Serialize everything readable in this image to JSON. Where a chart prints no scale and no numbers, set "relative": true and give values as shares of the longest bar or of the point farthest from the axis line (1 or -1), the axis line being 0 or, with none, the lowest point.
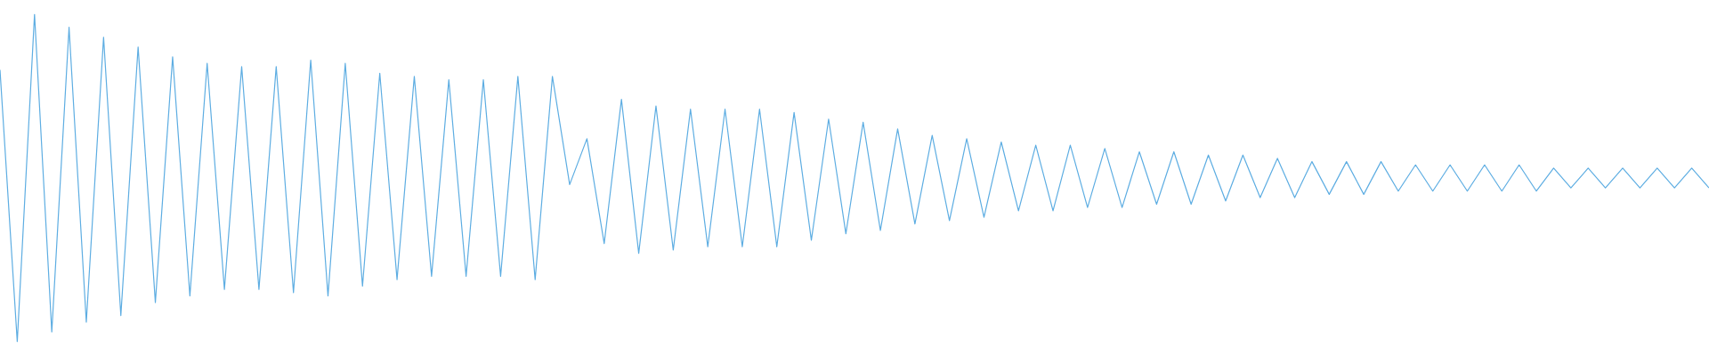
{
  "chart_data": {
    "type": "line",
    "relative": true,
    "marker": "none",
    "legend": false,
    "categories": [
      null,
      null,
      null,
      null,
      null,
      null,
      null,
      null,
      null,
      null,
      null,
      null,
      null,
      null,
      null,
      null,
      null,
      null,
      null,
      null,
      null,
      null,
      null,
      null,
      null,
      null,
      null,
      null,
      null,
      null,
      null,
      null,
      null,
      null,
      null,
      null,
      null,
      null,
      null,
      null,
      null,
      null,
      null,
      null,
      null,
      null,
      null,
      null,
      null,
      null,
      null,
      null,
      null,
      null,
      null,
      null,
      null,
      null,
      null,
      null,
      null,
      null,
      null,
      null,
      null,
      null,
      null,
      null,
      null,
      null,
      null,
      null,
      null,
      null,
      null,
      null,
      null,
      null,
      null,
      null,
      null,
      null,
      null,
      null,
      null,
      null,
      null,
      null,
      null,
      null,
      null,
      null,
      null,
      null,
      null,
      null,
      null,
      null,
      null,
      null
    ],
    "series": [
      {
        "color": "#5dade2",
        "values": [
          0.83,
          0,
          1,
          0.03,
          0.96,
          0.06,
          0.93,
          0.08,
          0.9,
          0.12,
          0.87,
          0.14,
          0.85,
          0.16,
          0.84,
          0.16,
          0.84,
          0.15,
          0.86,
          0.14,
          0.85,
          0.17,
          0.82,
          0.19,
          0.81,
          0.2,
          0.8,
          0.2,
          0.8,
          0.2,
          0.81,
          0.19,
          0.81,
          0.48,
          0.62,
          0.3,
          0.74,
          0.27,
          0.72,
          0.28,
          0.71,
          0.29,
          0.71,
          0.29,
          0.71,
          0.29,
          0.7,
          0.31,
          0.68,
          0.33,
          0.67,
          0.34,
          0.65,
          0.36,
          0.63,
          0.37,
          0.62,
          0.38,
          0.61,
          0.4,
          0.6,
          0.4,
          0.6,
          0.41,
          0.59,
          0.41,
          0.58,
          0.42,
          0.58,
          0.42,
          0.57,
          0.43,
          0.57,
          0.44,
          0.56,
          0.44,
          0.55,
          0.45,
          0.55,
          0.45,
          0.55,
          0.46,
          0.54,
          0.46,
          0.54,
          0.46,
          0.54,
          0.46,
          0.54,
          0.46,
          0.53,
          0.47,
          0.53,
          0.47,
          0.53,
          0.47,
          0.53,
          0.47,
          0.53,
          0.47
        ]
      }
    ]
  }
}
